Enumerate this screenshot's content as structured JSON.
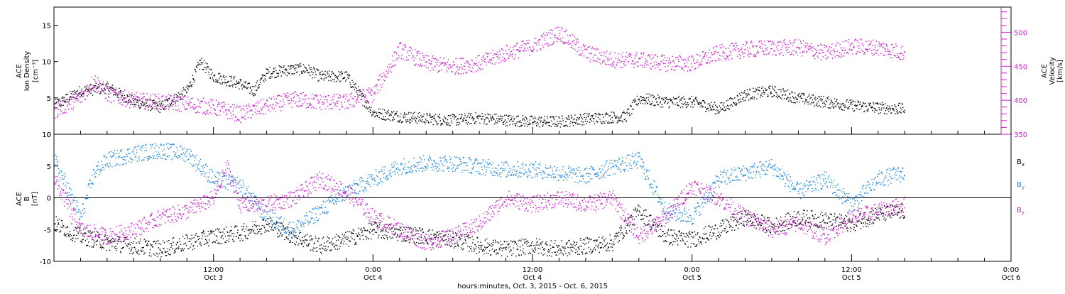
{
  "colors": {
    "black": "#000000",
    "magenta": "#d01cd0",
    "blue": "#1c86e0",
    "frame": "#000000"
  },
  "chart_data": [
    {
      "type": "scatter",
      "panel": "top",
      "ylabel_left": [
        "ACE",
        "Ion Density",
        "[cm⁻³]"
      ],
      "ylabel_right": [
        "ACE",
        "Velocity",
        "[km/s]"
      ],
      "ylim_left": [
        0,
        17.5
      ],
      "ylim_right": [
        350,
        537
      ],
      "yticks_left": [
        0,
        5,
        10,
        15
      ],
      "yticks_right": [
        350,
        400,
        450,
        500
      ],
      "series": [
        {
          "axis": "left",
          "color": "#000000",
          "points": [
            [
              0,
              4
            ],
            [
              2,
              6
            ],
            [
              4,
              6.5
            ],
            [
              6,
              4.5
            ],
            [
              8,
              3.8
            ],
            [
              10,
              6
            ],
            [
              11,
              10
            ],
            [
              12,
              8
            ],
            [
              13,
              7.5
            ],
            [
              14,
              7
            ],
            [
              15,
              6
            ],
            [
              16,
              8.5
            ],
            [
              18,
              9
            ],
            [
              19,
              9
            ],
            [
              20,
              8
            ],
            [
              22,
              8
            ],
            [
              24,
              3
            ],
            [
              26,
              2.5
            ],
            [
              28,
              2.2
            ],
            [
              30,
              2
            ],
            [
              32,
              2.3
            ],
            [
              34,
              2
            ],
            [
              36,
              1.8
            ],
            [
              38,
              1.8
            ],
            [
              40,
              2.2
            ],
            [
              43,
              2.5
            ],
            [
              44,
              5
            ],
            [
              46,
              4.5
            ],
            [
              48,
              4.5
            ],
            [
              50,
              3.5
            ],
            [
              52,
              5.5
            ],
            [
              54,
              6
            ],
            [
              56,
              5
            ],
            [
              58,
              4.5
            ],
            [
              60,
              4
            ],
            [
              62,
              3.7
            ],
            [
              64,
              3.5
            ]
          ]
        },
        {
          "axis": "right",
          "color": "#d01cd0",
          "points": [
            [
              0,
              385
            ],
            [
              2,
              405
            ],
            [
              3,
              430
            ],
            [
              4,
              410
            ],
            [
              6,
              400
            ],
            [
              8,
              398
            ],
            [
              10,
              395
            ],
            [
              12,
              390
            ],
            [
              14,
              380
            ],
            [
              16,
              392
            ],
            [
              18,
              402
            ],
            [
              20,
              398
            ],
            [
              22,
              398
            ],
            [
              24,
              410
            ],
            [
              26,
              475
            ],
            [
              28,
              455
            ],
            [
              30,
              450
            ],
            [
              32,
              455
            ],
            [
              34,
              470
            ],
            [
              36,
              480
            ],
            [
              38,
              500
            ],
            [
              40,
              470
            ],
            [
              42,
              460
            ],
            [
              44,
              460
            ],
            [
              46,
              455
            ],
            [
              48,
              455
            ],
            [
              50,
              470
            ],
            [
              52,
              475
            ],
            [
              54,
              478
            ],
            [
              56,
              478
            ],
            [
              58,
              470
            ],
            [
              60,
              480
            ],
            [
              62,
              478
            ],
            [
              64,
              470
            ]
          ]
        }
      ]
    },
    {
      "type": "scatter",
      "panel": "bottom",
      "ylabel_left": [
        "ACE",
        "B",
        "[nT]"
      ],
      "ylim_left": [
        -10,
        10
      ],
      "yticks_left": [
        -10,
        -5,
        0,
        5,
        10
      ],
      "legend": [
        "Bx",
        "By",
        "Bz"
      ],
      "series": [
        {
          "name": "Bx",
          "color": "#000000",
          "points": [
            [
              0,
              -4
            ],
            [
              2,
              -6
            ],
            [
              4,
              -7
            ],
            [
              6,
              -7.5
            ],
            [
              8,
              -8
            ],
            [
              10,
              -7
            ],
            [
              12,
              -6
            ],
            [
              14,
              -5.5
            ],
            [
              16,
              -4
            ],
            [
              18,
              -6
            ],
            [
              20,
              -7.5
            ],
            [
              22,
              -6.5
            ],
            [
              24,
              -5
            ],
            [
              26,
              -5.5
            ],
            [
              28,
              -6
            ],
            [
              30,
              -6.5
            ],
            [
              32,
              -7.5
            ],
            [
              34,
              -8
            ],
            [
              36,
              -7.5
            ],
            [
              38,
              -8
            ],
            [
              40,
              -7.5
            ],
            [
              42,
              -7
            ],
            [
              44,
              -2
            ],
            [
              46,
              -6
            ],
            [
              48,
              -6.5
            ],
            [
              50,
              -5
            ],
            [
              52,
              -3
            ],
            [
              54,
              -4.5
            ],
            [
              56,
              -3
            ],
            [
              58,
              -3.5
            ],
            [
              60,
              -4
            ],
            [
              62,
              -2.5
            ],
            [
              64,
              -2
            ]
          ]
        },
        {
          "name": "By",
          "color": "#1c86e0",
          "points": [
            [
              0,
              6
            ],
            [
              2,
              -3
            ],
            [
              3,
              4
            ],
            [
              4,
              6
            ],
            [
              6,
              7
            ],
            [
              8,
              7.5
            ],
            [
              10,
              7
            ],
            [
              12,
              3
            ],
            [
              14,
              2
            ],
            [
              16,
              -3
            ],
            [
              18,
              -5
            ],
            [
              20,
              -2
            ],
            [
              22,
              1
            ],
            [
              24,
              3
            ],
            [
              26,
              5
            ],
            [
              28,
              5.5
            ],
            [
              30,
              5.5
            ],
            [
              32,
              5
            ],
            [
              34,
              4.5
            ],
            [
              36,
              4.5
            ],
            [
              38,
              4
            ],
            [
              40,
              3.5
            ],
            [
              42,
              5
            ],
            [
              44,
              6
            ],
            [
              46,
              -2
            ],
            [
              48,
              -3
            ],
            [
              50,
              3
            ],
            [
              52,
              4
            ],
            [
              54,
              5
            ],
            [
              56,
              1
            ],
            [
              58,
              3
            ],
            [
              60,
              -1
            ],
            [
              62,
              3
            ],
            [
              64,
              4
            ]
          ]
        },
        {
          "name": "Bz",
          "color": "#d01cd0",
          "points": [
            [
              0,
              3
            ],
            [
              2,
              -5
            ],
            [
              4,
              -6
            ],
            [
              6,
              -5
            ],
            [
              8,
              -3
            ],
            [
              10,
              -2
            ],
            [
              12,
              0
            ],
            [
              13,
              5
            ],
            [
              14,
              -1
            ],
            [
              16,
              -1
            ],
            [
              18,
              0
            ],
            [
              20,
              3
            ],
            [
              22,
              1
            ],
            [
              24,
              -3
            ],
            [
              26,
              -5
            ],
            [
              28,
              -7
            ],
            [
              30,
              -6
            ],
            [
              32,
              -4
            ],
            [
              34,
              0
            ],
            [
              36,
              -1
            ],
            [
              38,
              0
            ],
            [
              40,
              -1
            ],
            [
              42,
              0
            ],
            [
              44,
              -6
            ],
            [
              46,
              -3
            ],
            [
              48,
              2
            ],
            [
              50,
              0
            ],
            [
              52,
              -3
            ],
            [
              54,
              -5
            ],
            [
              56,
              -4
            ],
            [
              58,
              -6
            ],
            [
              60,
              -3
            ],
            [
              62,
              -2
            ],
            [
              64,
              -1
            ]
          ]
        }
      ]
    }
  ],
  "x_axis": {
    "range_hours": [
      0,
      72
    ],
    "tick_hours": [
      12,
      24,
      36,
      48,
      60,
      72
    ],
    "tick_time_labels": [
      "12:00",
      "0:00",
      "12:00",
      "0:00",
      "12:00",
      "0:00"
    ],
    "tick_date_labels": [
      "Oct 3",
      "Oct 4",
      "Oct 4",
      "Oct 5",
      "Oct 5",
      "Oct 6"
    ],
    "xlabel": "hours:minutes, Oct.  3, 2015 - Oct.  6, 2015"
  },
  "legend_labels": {
    "bx": "B",
    "bx_sub": "x",
    "by": "B",
    "by_sub": "y",
    "bz": "B",
    "bz_sub": "z"
  }
}
